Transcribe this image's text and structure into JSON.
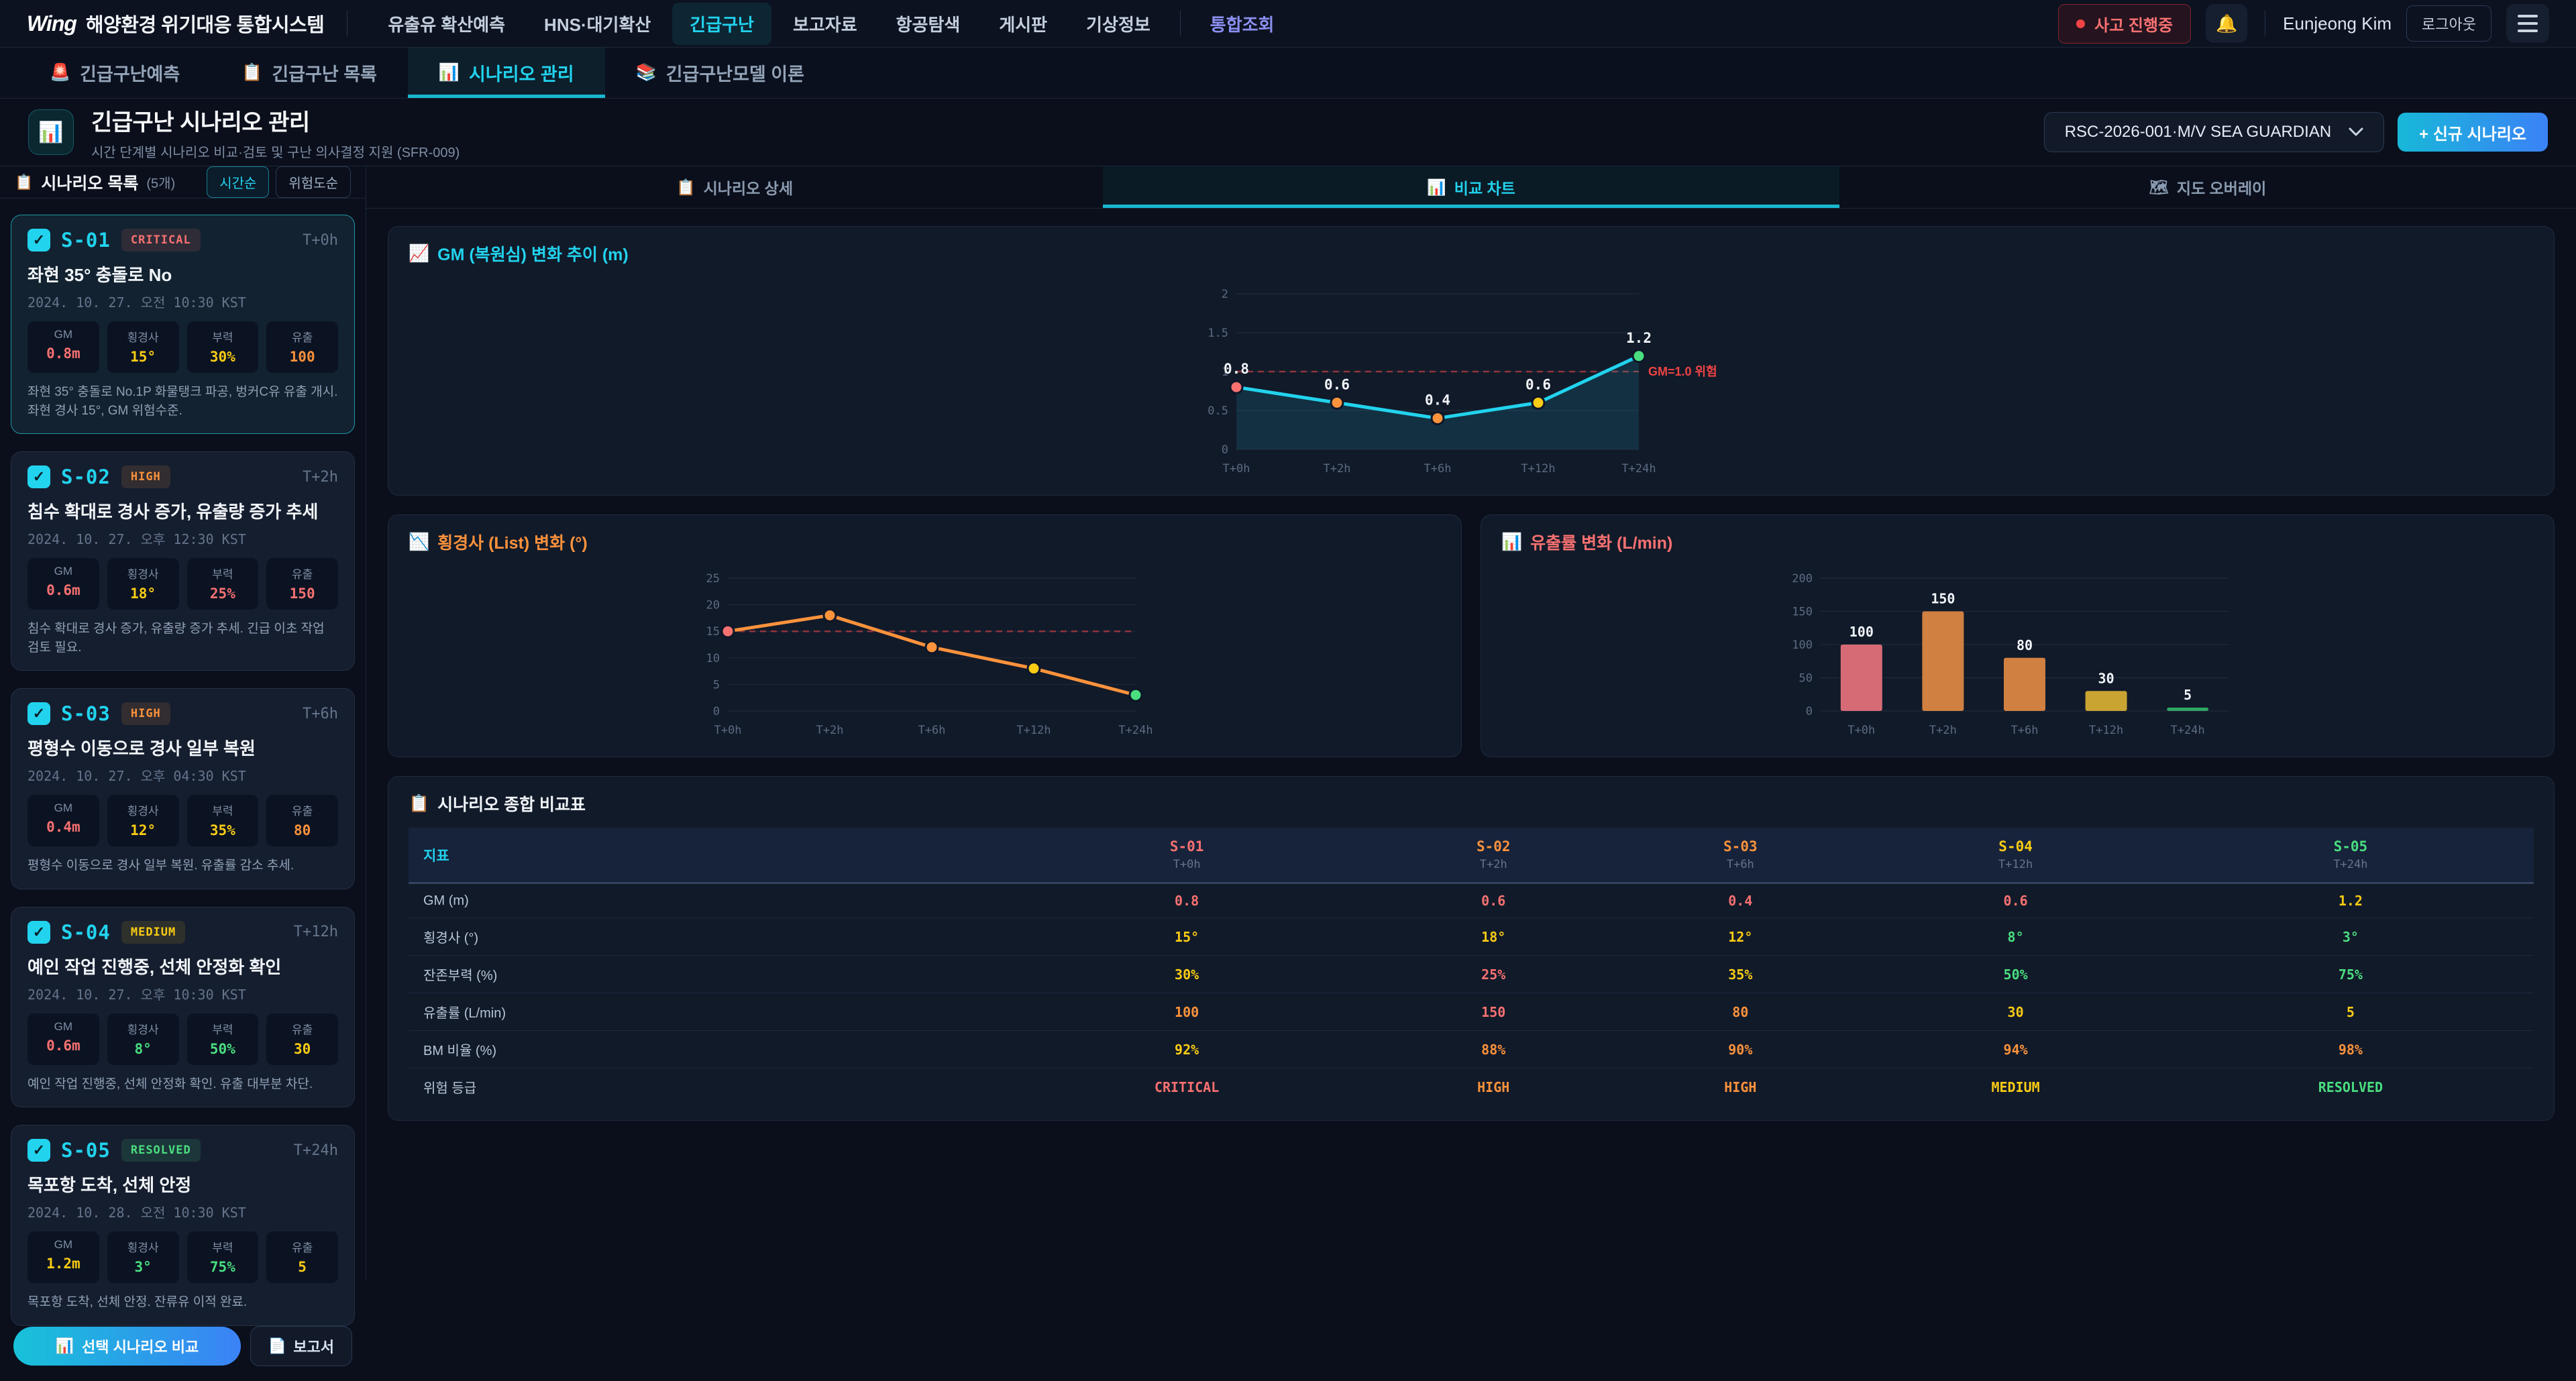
{
  "colors": {
    "red": "#f87171",
    "orange": "#fb923c",
    "yellow": "#facc15",
    "green": "#4ade80",
    "cyan": "#22d3ee",
    "indigo": "#8b8ff0",
    "accent_blue": "#3b82f6",
    "threshold_red": "#ef4444"
  },
  "topbar": {
    "brand": "Wing",
    "app_title": "해양환경 위기대응 통합시스템",
    "nav": [
      "유출유 확산예측",
      "HNS·대기확산",
      "긴급구난",
      "보고자료",
      "항공탐색",
      "게시판",
      "기상정보"
    ],
    "nav_active_index": 2,
    "nav_secondary": "통합조회",
    "incident_badge": "사고 진행중",
    "bell_icon": "🔔",
    "user_name": "Eunjeong Kim",
    "logout_label": "로그아웃"
  },
  "module_tabs": [
    {
      "icon": "🚨",
      "label": "긴급구난예측",
      "active": false
    },
    {
      "icon": "📋",
      "label": "긴급구난 목록",
      "active": false
    },
    {
      "icon": "📊",
      "label": "시나리오 관리",
      "active": true
    },
    {
      "icon": "📚",
      "label": "긴급구난모델 이론",
      "active": false
    }
  ],
  "header": {
    "icon": "📊",
    "title": "긴급구난 시나리오 관리",
    "subtitle": "시간 단계별 시나리오 비교·검토 및 구난 의사결정 지원 (SFR-009)",
    "vessel_select": "RSC-2026-001·M/V SEA GUARDIAN",
    "new_scenario_label": "+ 신규 시나리오"
  },
  "sidebar": {
    "icon": "📋",
    "title": "시나리오 목록",
    "count_label": "(5개)",
    "sort_time": "시간순",
    "sort_risk": "위험도순",
    "metric_labels": [
      "GM",
      "횡경사",
      "부력",
      "유출"
    ],
    "scenarios": [
      {
        "id": "S-01",
        "severity": "CRITICAL",
        "time": "T+0h",
        "title": "좌현 35° 충돌로 No",
        "datetime": "2024. 10. 27. 오전 10:30 KST",
        "selected": true,
        "metrics": [
          {
            "v": "0.8m",
            "c": "red"
          },
          {
            "v": "15°",
            "c": "yellow"
          },
          {
            "v": "30%",
            "c": "yellow"
          },
          {
            "v": "100",
            "c": "orange"
          }
        ],
        "desc": "좌현 35° 충돌로 No.1P 화물탱크 파공, 벙커C유 유출 개시. 좌현 경사 15°, GM 위험수준."
      },
      {
        "id": "S-02",
        "severity": "HIGH",
        "time": "T+2h",
        "title": "침수 확대로 경사 증가, 유출량 증가 추세",
        "datetime": "2024. 10. 27. 오후 12:30 KST",
        "selected": false,
        "metrics": [
          {
            "v": "0.6m",
            "c": "red"
          },
          {
            "v": "18°",
            "c": "yellow"
          },
          {
            "v": "25%",
            "c": "red"
          },
          {
            "v": "150",
            "c": "red"
          }
        ],
        "desc": "침수 확대로 경사 증가, 유출량 증가 추세. 긴급 이초 작업 검토 필요."
      },
      {
        "id": "S-03",
        "severity": "HIGH",
        "time": "T+6h",
        "title": "평형수 이동으로 경사 일부 복원",
        "datetime": "2024. 10. 27. 오후 04:30 KST",
        "selected": false,
        "metrics": [
          {
            "v": "0.4m",
            "c": "red"
          },
          {
            "v": "12°",
            "c": "yellow"
          },
          {
            "v": "35%",
            "c": "yellow"
          },
          {
            "v": "80",
            "c": "orange"
          }
        ],
        "desc": "평형수 이동으로 경사 일부 복원. 유출률 감소 추세."
      },
      {
        "id": "S-04",
        "severity": "MEDIUM",
        "time": "T+12h",
        "title": "예인 작업 진행중, 선체 안정화 확인",
        "datetime": "2024. 10. 27. 오후 10:30 KST",
        "selected": false,
        "metrics": [
          {
            "v": "0.6m",
            "c": "red"
          },
          {
            "v": "8°",
            "c": "green"
          },
          {
            "v": "50%",
            "c": "green"
          },
          {
            "v": "30",
            "c": "yellow"
          }
        ],
        "desc": "예인 작업 진행중, 선체 안정화 확인. 유출 대부분 차단."
      },
      {
        "id": "S-05",
        "severity": "RESOLVED",
        "time": "T+24h",
        "title": "목포항 도착, 선체 안정",
        "datetime": "2024. 10. 28. 오전 10:30 KST",
        "selected": false,
        "metrics": [
          {
            "v": "1.2m",
            "c": "yellow"
          },
          {
            "v": "3°",
            "c": "green"
          },
          {
            "v": "75%",
            "c": "green"
          },
          {
            "v": "5",
            "c": "yellow"
          }
        ],
        "desc": "목포항 도착, 선체 안정. 잔류유 이적 완료."
      }
    ]
  },
  "content_tabs": [
    {
      "icon": "📋",
      "label": "시나리오 상세",
      "active": false
    },
    {
      "icon": "📊",
      "label": "비교 차트",
      "active": true
    },
    {
      "icon": "🗺",
      "label": "지도 오버레이",
      "active": false
    }
  ],
  "chart_data": [
    {
      "id": "gm",
      "type": "line",
      "icon": "📈",
      "title": "GM (복원심) 변화 추이 (m)",
      "title_color": "#22d3ee",
      "x": [
        "T+0h",
        "T+2h",
        "T+6h",
        "T+12h",
        "T+24h"
      ],
      "values": [
        0.8,
        0.6,
        0.4,
        0.6,
        1.2
      ],
      "labels": [
        "0.8",
        "0.6",
        "0.4",
        "0.6",
        "1.2"
      ],
      "show_labels": true,
      "point_colors": [
        "#f87171",
        "#fb923c",
        "#fb923c",
        "#facc15",
        "#4ade80"
      ],
      "line_color": "#22d3ee",
      "area": true,
      "ylim": [
        0,
        2
      ],
      "yticks": [
        0,
        0.5,
        1,
        1.5,
        2
      ],
      "threshold": {
        "value": 1.0,
        "label": "GM=1.0 위험",
        "color": "#ef4444"
      },
      "grid": true,
      "legend": "none"
    },
    {
      "id": "list",
      "type": "line",
      "icon": "📉",
      "title": "횡경사 (List) 변화 (°)",
      "title_color": "#fb923c",
      "x": [
        "T+0h",
        "T+2h",
        "T+6h",
        "T+12h",
        "T+24h"
      ],
      "values": [
        15,
        18,
        12,
        8,
        3
      ],
      "show_labels": false,
      "point_colors": [
        "#f87171",
        "#fb923c",
        "#fb923c",
        "#facc15",
        "#4ade80"
      ],
      "line_color": "#fb923c",
      "area": false,
      "ylim": [
        0,
        25
      ],
      "yticks": [
        0,
        5,
        10,
        15,
        20,
        25
      ],
      "threshold": {
        "value": 15,
        "label": "",
        "color": "#ef4444"
      },
      "grid": true,
      "legend": "none"
    },
    {
      "id": "spill",
      "type": "bar",
      "icon": "📊",
      "title": "유출률 변화 (L/min)",
      "title_color": "#f87171",
      "x": [
        "T+0h",
        "T+2h",
        "T+6h",
        "T+12h",
        "T+24h"
      ],
      "values": [
        100,
        150,
        80,
        30,
        5
      ],
      "show_labels": true,
      "bar_colors": [
        "#d66b75",
        "#d08040",
        "#d08040",
        "#c9a433",
        "#2fa662"
      ],
      "ylim": [
        0,
        200
      ],
      "yticks": [
        0,
        50,
        100,
        150,
        200
      ],
      "grid": true,
      "legend": "none"
    }
  ],
  "table": {
    "icon": "📋",
    "title": "시나리오 종합 비교표",
    "metric_header": "지표",
    "columns": [
      {
        "id": "S-01",
        "time": "T+0h",
        "color": "#f87171"
      },
      {
        "id": "S-02",
        "time": "T+2h",
        "color": "#fb923c"
      },
      {
        "id": "S-03",
        "time": "T+6h",
        "color": "#fb923c"
      },
      {
        "id": "S-04",
        "time": "T+12h",
        "color": "#facc15"
      },
      {
        "id": "S-05",
        "time": "T+24h",
        "color": "#4ade80"
      }
    ],
    "rows": [
      {
        "label": "GM (m)",
        "cells": [
          {
            "text": "0.8",
            "c": "red"
          },
          {
            "text": "0.6",
            "c": "red"
          },
          {
            "text": "0.4",
            "c": "red"
          },
          {
            "text": "0.6",
            "c": "red"
          },
          {
            "text": "1.2",
            "c": "yellow"
          }
        ]
      },
      {
        "label": "횡경사 (°)",
        "cells": [
          {
            "text": "15°",
            "c": "yellow"
          },
          {
            "text": "18°",
            "c": "yellow"
          },
          {
            "text": "12°",
            "c": "yellow"
          },
          {
            "text": "8°",
            "c": "green"
          },
          {
            "text": "3°",
            "c": "green"
          }
        ]
      },
      {
        "label": "잔존부력 (%)",
        "cells": [
          {
            "text": "30%",
            "c": "yellow"
          },
          {
            "text": "25%",
            "c": "red"
          },
          {
            "text": "35%",
            "c": "yellow"
          },
          {
            "text": "50%",
            "c": "green"
          },
          {
            "text": "75%",
            "c": "green"
          }
        ]
      },
      {
        "label": "유출률 (L/min)",
        "cells": [
          {
            "text": "100",
            "c": "orange"
          },
          {
            "text": "150",
            "c": "red"
          },
          {
            "text": "80",
            "c": "orange"
          },
          {
            "text": "30",
            "c": "yellow"
          },
          {
            "text": "5",
            "c": "yellow"
          }
        ]
      },
      {
        "label": "BM 비율 (%)",
        "cells": [
          {
            "text": "92%",
            "c": "yellow"
          },
          {
            "text": "88%",
            "c": "orange"
          },
          {
            "text": "90%",
            "c": "orange"
          },
          {
            "text": "94%",
            "c": "orange"
          },
          {
            "text": "98%",
            "c": "orange"
          }
        ]
      },
      {
        "label": "위험 등급",
        "cells": [
          {
            "text": "CRITICAL",
            "c": "red"
          },
          {
            "text": "HIGH",
            "c": "orange"
          },
          {
            "text": "HIGH",
            "c": "orange"
          },
          {
            "text": "MEDIUM",
            "c": "yellow"
          },
          {
            "text": "RESOLVED",
            "c": "green"
          }
        ]
      }
    ]
  },
  "footer": {
    "compare_icon": "📊",
    "compare_label": "선택 시나리오 비교",
    "report_icon": "📄",
    "report_label": "보고서"
  }
}
